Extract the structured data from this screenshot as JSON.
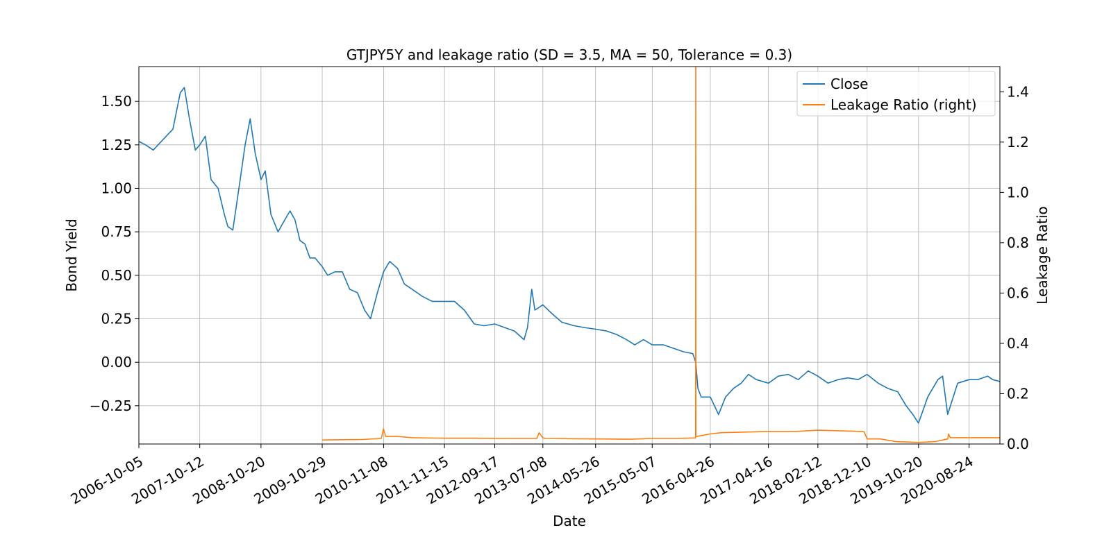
{
  "chart_data": {
    "type": "line",
    "title": "GTJPY5Y and leakage ratio (SD = 3.5, MA = 50, Tolerance  = 0.3)",
    "xlabel": "Date",
    "ylabel": "Bond Yield",
    "ylabel_right": "Leakage Ratio",
    "x_ticks": [
      "2006-10-05",
      "2007-10-12",
      "2008-10-20",
      "2009-10-29",
      "2010-11-08",
      "2011-11-15",
      "2012-09-17",
      "2013-07-08",
      "2014-05-26",
      "2015-05-07",
      "2016-04-26",
      "2017-04-16",
      "2018-02-12",
      "2018-12-10",
      "2019-10-20",
      "2020-08-24"
    ],
    "ylim": [
      -0.47,
      1.7
    ],
    "ylim_right": [
      0.0,
      1.5
    ],
    "y_ticks": [
      "−0.25",
      "0.00",
      "0.25",
      "0.50",
      "0.75",
      "1.00",
      "1.25",
      "1.50"
    ],
    "y_tick_values": [
      -0.25,
      0.0,
      0.25,
      0.5,
      0.75,
      1.0,
      1.25,
      1.5
    ],
    "y_ticks_right": [
      "0.0",
      "0.2",
      "0.4",
      "0.6",
      "0.8",
      "1.0",
      "1.2",
      "1.4"
    ],
    "y_tick_values_right": [
      0.0,
      0.2,
      0.4,
      0.6,
      0.8,
      1.0,
      1.2,
      1.4
    ],
    "grid": true,
    "legend_position": "top-right",
    "series": [
      {
        "name": "Close",
        "axis": "left",
        "color": "#1f77b4",
        "x": [
          "2006-10-05",
          "2006-11-15",
          "2007-01-01",
          "2007-03-01",
          "2007-05-01",
          "2007-06-15",
          "2007-07-10",
          "2007-08-10",
          "2007-09-15",
          "2007-10-12",
          "2007-11-15",
          "2007-12-20",
          "2008-02-01",
          "2008-03-10",
          "2008-04-01",
          "2008-05-01",
          "2008-06-15",
          "2008-07-15",
          "2008-08-15",
          "2008-09-15",
          "2008-10-20",
          "2008-11-15",
          "2008-12-20",
          "2009-02-01",
          "2009-03-15",
          "2009-04-15",
          "2009-05-15",
          "2009-06-15",
          "2009-07-15",
          "2009-08-15",
          "2009-09-15",
          "2009-10-29",
          "2009-12-01",
          "2010-01-15",
          "2010-03-01",
          "2010-04-15",
          "2010-06-01",
          "2010-07-15",
          "2010-08-20",
          "2010-10-01",
          "2010-11-08",
          "2010-12-15",
          "2011-02-01",
          "2011-03-15",
          "2011-05-01",
          "2011-07-01",
          "2011-09-01",
          "2011-11-15",
          "2012-01-15",
          "2012-03-15",
          "2012-05-15",
          "2012-07-15",
          "2012-09-17",
          "2012-11-15",
          "2013-01-15",
          "2013-03-15",
          "2013-04-05",
          "2013-05-01",
          "2013-05-20",
          "2013-07-08",
          "2013-09-01",
          "2013-11-01",
          "2014-01-15",
          "2014-03-15",
          "2014-05-26",
          "2014-08-01",
          "2014-10-01",
          "2014-12-01",
          "2015-01-20",
          "2015-03-15",
          "2015-05-07",
          "2015-07-15",
          "2015-09-15",
          "2015-11-15",
          "2016-01-10",
          "2016-01-28",
          "2016-02-10",
          "2016-03-01",
          "2016-04-26",
          "2016-06-15",
          "2016-07-28",
          "2016-09-15",
          "2016-11-01",
          "2016-12-15",
          "2017-02-01",
          "2017-04-16",
          "2017-06-15",
          "2017-08-15",
          "2017-10-15",
          "2017-12-15",
          "2018-02-12",
          "2018-04-15",
          "2018-06-15",
          "2018-08-15",
          "2018-10-15",
          "2018-12-10",
          "2019-02-15",
          "2019-04-15",
          "2019-06-15",
          "2019-08-05",
          "2019-09-15",
          "2019-10-20",
          "2019-12-15",
          "2020-02-15",
          "2020-03-15",
          "2020-04-15",
          "2020-06-15",
          "2020-08-24",
          "2020-10-15",
          "2020-12-15",
          "2021-01-15",
          "2021-02-28"
        ],
        "values": [
          1.27,
          1.25,
          1.22,
          1.28,
          1.34,
          1.55,
          1.58,
          1.4,
          1.22,
          1.25,
          1.3,
          1.05,
          1.0,
          0.85,
          0.78,
          0.76,
          1.05,
          1.25,
          1.4,
          1.2,
          1.05,
          1.1,
          0.85,
          0.75,
          0.82,
          0.87,
          0.82,
          0.7,
          0.68,
          0.6,
          0.6,
          0.55,
          0.5,
          0.52,
          0.52,
          0.42,
          0.4,
          0.3,
          0.25,
          0.4,
          0.52,
          0.58,
          0.54,
          0.45,
          0.42,
          0.38,
          0.35,
          0.35,
          0.35,
          0.3,
          0.22,
          0.21,
          0.22,
          0.2,
          0.18,
          0.13,
          0.2,
          0.42,
          0.3,
          0.33,
          0.28,
          0.23,
          0.21,
          0.2,
          0.19,
          0.18,
          0.16,
          0.13,
          0.1,
          0.13,
          0.1,
          0.1,
          0.08,
          0.06,
          0.05,
          0.0,
          -0.15,
          -0.2,
          -0.2,
          -0.3,
          -0.2,
          -0.15,
          -0.12,
          -0.07,
          -0.1,
          -0.12,
          -0.08,
          -0.07,
          -0.1,
          -0.05,
          -0.08,
          -0.12,
          -0.1,
          -0.09,
          -0.1,
          -0.07,
          -0.12,
          -0.15,
          -0.17,
          -0.25,
          -0.3,
          -0.35,
          -0.2,
          -0.1,
          -0.08,
          -0.3,
          -0.12,
          -0.1,
          -0.1,
          -0.08,
          -0.1,
          -0.11
        ]
      },
      {
        "name": "Leakage Ratio (right)",
        "axis": "right",
        "color": "#ff7f0e",
        "x": [
          "2009-10-29",
          "2010-03-01",
          "2010-07-01",
          "2010-10-25",
          "2010-11-08",
          "2010-11-20",
          "2011-02-01",
          "2011-05-01",
          "2011-11-15",
          "2012-06-01",
          "2013-01-01",
          "2013-06-01",
          "2013-06-15",
          "2013-07-01",
          "2013-07-08",
          "2013-07-20",
          "2014-05-26",
          "2015-01-01",
          "2015-05-07",
          "2015-10-01",
          "2016-01-27",
          "2016-01-28",
          "2016-01-29",
          "2016-02-01",
          "2016-03-15",
          "2016-04-26",
          "2016-07-01",
          "2017-04-16",
          "2017-10-01",
          "2018-02-12",
          "2018-11-10",
          "2018-11-20",
          "2018-12-10",
          "2019-03-01",
          "2019-06-01",
          "2019-10-20",
          "2020-02-01",
          "2020-04-15",
          "2020-04-20",
          "2020-05-01",
          "2020-08-24",
          "2021-02-28"
        ],
        "values": [
          0.016,
          0.017,
          0.018,
          0.022,
          0.06,
          0.03,
          0.03,
          0.025,
          0.023,
          0.023,
          0.022,
          0.022,
          0.045,
          0.03,
          0.025,
          0.022,
          0.02,
          0.019,
          0.022,
          0.022,
          0.024,
          1.55,
          0.03,
          0.03,
          0.035,
          0.04,
          0.045,
          0.05,
          0.05,
          0.055,
          0.05,
          0.05,
          0.02,
          0.02,
          0.01,
          0.006,
          0.01,
          0.02,
          0.04,
          0.025,
          0.025,
          0.025
        ]
      }
    ]
  }
}
